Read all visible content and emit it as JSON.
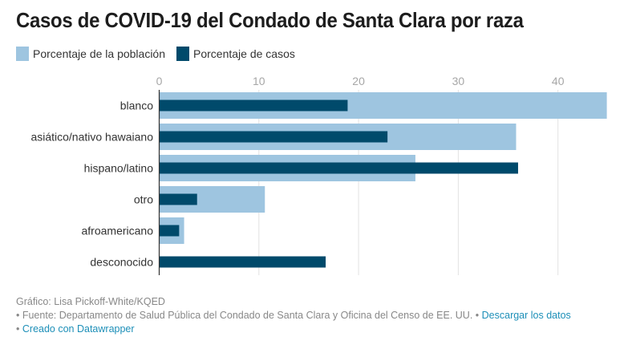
{
  "chart_data": {
    "type": "bar",
    "orientation": "horizontal",
    "title": "Casos de COVID-19 del Condado de Santa Clara por raza",
    "categories": [
      "blanco",
      "asiático/nativo hawaiano",
      "hispano/latino",
      "otro",
      "afroamericano",
      "desconocido"
    ],
    "series": [
      {
        "name": "Porcentaje de la población",
        "color": "#9ec5e0",
        "values": [
          44.9,
          35.8,
          25.7,
          10.6,
          2.5,
          0
        ]
      },
      {
        "name": "Porcentaje de casos",
        "color": "#004a6b",
        "values": [
          18.9,
          22.9,
          36.0,
          3.8,
          2.0,
          16.7
        ]
      }
    ],
    "xlim": [
      0,
      45
    ],
    "xticks": [
      0,
      10,
      20,
      30,
      40
    ],
    "grid": true,
    "legend_position": "top-left",
    "xlabel": "",
    "ylabel": ""
  },
  "footer": {
    "credit": "Gráfico: Lisa Pickoff-White/KQED",
    "source": "• Fuente: Departamento de Salud Pública del Condado de Santa Clara y Oficina del Censo de EE. UU. •",
    "download_link": "Descargar los datos",
    "bullet": "•",
    "created_with": "Creado con Datawrapper"
  }
}
